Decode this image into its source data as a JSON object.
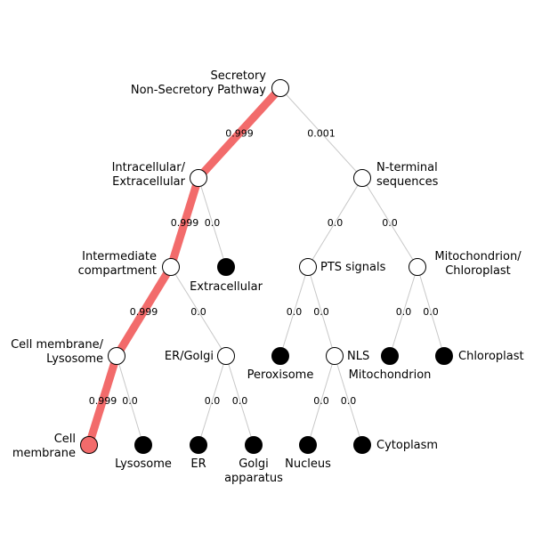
{
  "colors": {
    "edge": "#c8c8c8",
    "highlight": "#f26b6b",
    "open_node": "#ffffff",
    "leaf_node": "#000000",
    "selected_leaf": "#f26b6b"
  },
  "nodes": {
    "root": {
      "label": [
        "Secretory",
        "Non-Secretory Pathway"
      ]
    },
    "intracellular": {
      "label": [
        "Intracellular/",
        "Extracellular"
      ]
    },
    "nterminal": {
      "label": [
        "N-terminal",
        "sequences"
      ]
    },
    "intermediate": {
      "label": [
        "Intermediate",
        "compartment"
      ]
    },
    "extracellular": {
      "label": [
        "Extracellular"
      ]
    },
    "pts": {
      "label": [
        "PTS signals"
      ]
    },
    "mitochloro": {
      "label": [
        "Mitochondrion/",
        "Chloroplast"
      ]
    },
    "cellmemlys": {
      "label": [
        "Cell membrane/",
        "Lysosome"
      ]
    },
    "ergolgi": {
      "label": [
        "ER/Golgi"
      ]
    },
    "peroxisome": {
      "label": [
        "Peroxisome"
      ]
    },
    "nls": {
      "label": [
        "NLS"
      ]
    },
    "mitochondrion": {
      "label": [
        "Mitochondrion"
      ]
    },
    "chloroplast": {
      "label": [
        "Chloroplast"
      ]
    },
    "cellmembrane": {
      "label": [
        "Cell",
        "membrane"
      ]
    },
    "lysosome": {
      "label": [
        "Lysosome"
      ]
    },
    "er": {
      "label": [
        "ER"
      ]
    },
    "golgi": {
      "label": [
        "Golgi",
        "apparatus"
      ]
    },
    "nucleus": {
      "label": [
        "Nucleus"
      ]
    },
    "cytoplasm": {
      "label": [
        "Cytoplasm"
      ]
    }
  },
  "edges": [
    {
      "from": "root",
      "to": "intracellular",
      "prob": "0.999",
      "highlight": true
    },
    {
      "from": "root",
      "to": "nterminal",
      "prob": "0.001",
      "highlight": false
    },
    {
      "from": "intracellular",
      "to": "intermediate",
      "prob": "0.999",
      "highlight": true
    },
    {
      "from": "intracellular",
      "to": "extracellular",
      "prob": "0.0",
      "highlight": false
    },
    {
      "from": "nterminal",
      "to": "pts",
      "prob": "0.0",
      "highlight": false
    },
    {
      "from": "nterminal",
      "to": "mitochloro",
      "prob": "0.0",
      "highlight": false
    },
    {
      "from": "intermediate",
      "to": "cellmemlys",
      "prob": "0.999",
      "highlight": true
    },
    {
      "from": "intermediate",
      "to": "ergolgi",
      "prob": "0.0",
      "highlight": false
    },
    {
      "from": "pts",
      "to": "peroxisome",
      "prob": "0.0",
      "highlight": false
    },
    {
      "from": "pts",
      "to": "nls",
      "prob": "0.0",
      "highlight": false
    },
    {
      "from": "mitochloro",
      "to": "mitochondrion",
      "prob": "0.0",
      "highlight": false
    },
    {
      "from": "mitochloro",
      "to": "chloroplast",
      "prob": "0.0",
      "highlight": false
    },
    {
      "from": "cellmemlys",
      "to": "cellmembrane",
      "prob": "0.999",
      "highlight": true
    },
    {
      "from": "cellmemlys",
      "to": "lysosome",
      "prob": "0.0",
      "highlight": false
    },
    {
      "from": "ergolgi",
      "to": "er",
      "prob": "0.0",
      "highlight": false
    },
    {
      "from": "ergolgi",
      "to": "golgi",
      "prob": "0.0",
      "highlight": false
    },
    {
      "from": "nls",
      "to": "nucleus",
      "prob": "0.0",
      "highlight": false
    },
    {
      "from": "nls",
      "to": "cytoplasm",
      "prob": "0.0",
      "highlight": false
    }
  ]
}
